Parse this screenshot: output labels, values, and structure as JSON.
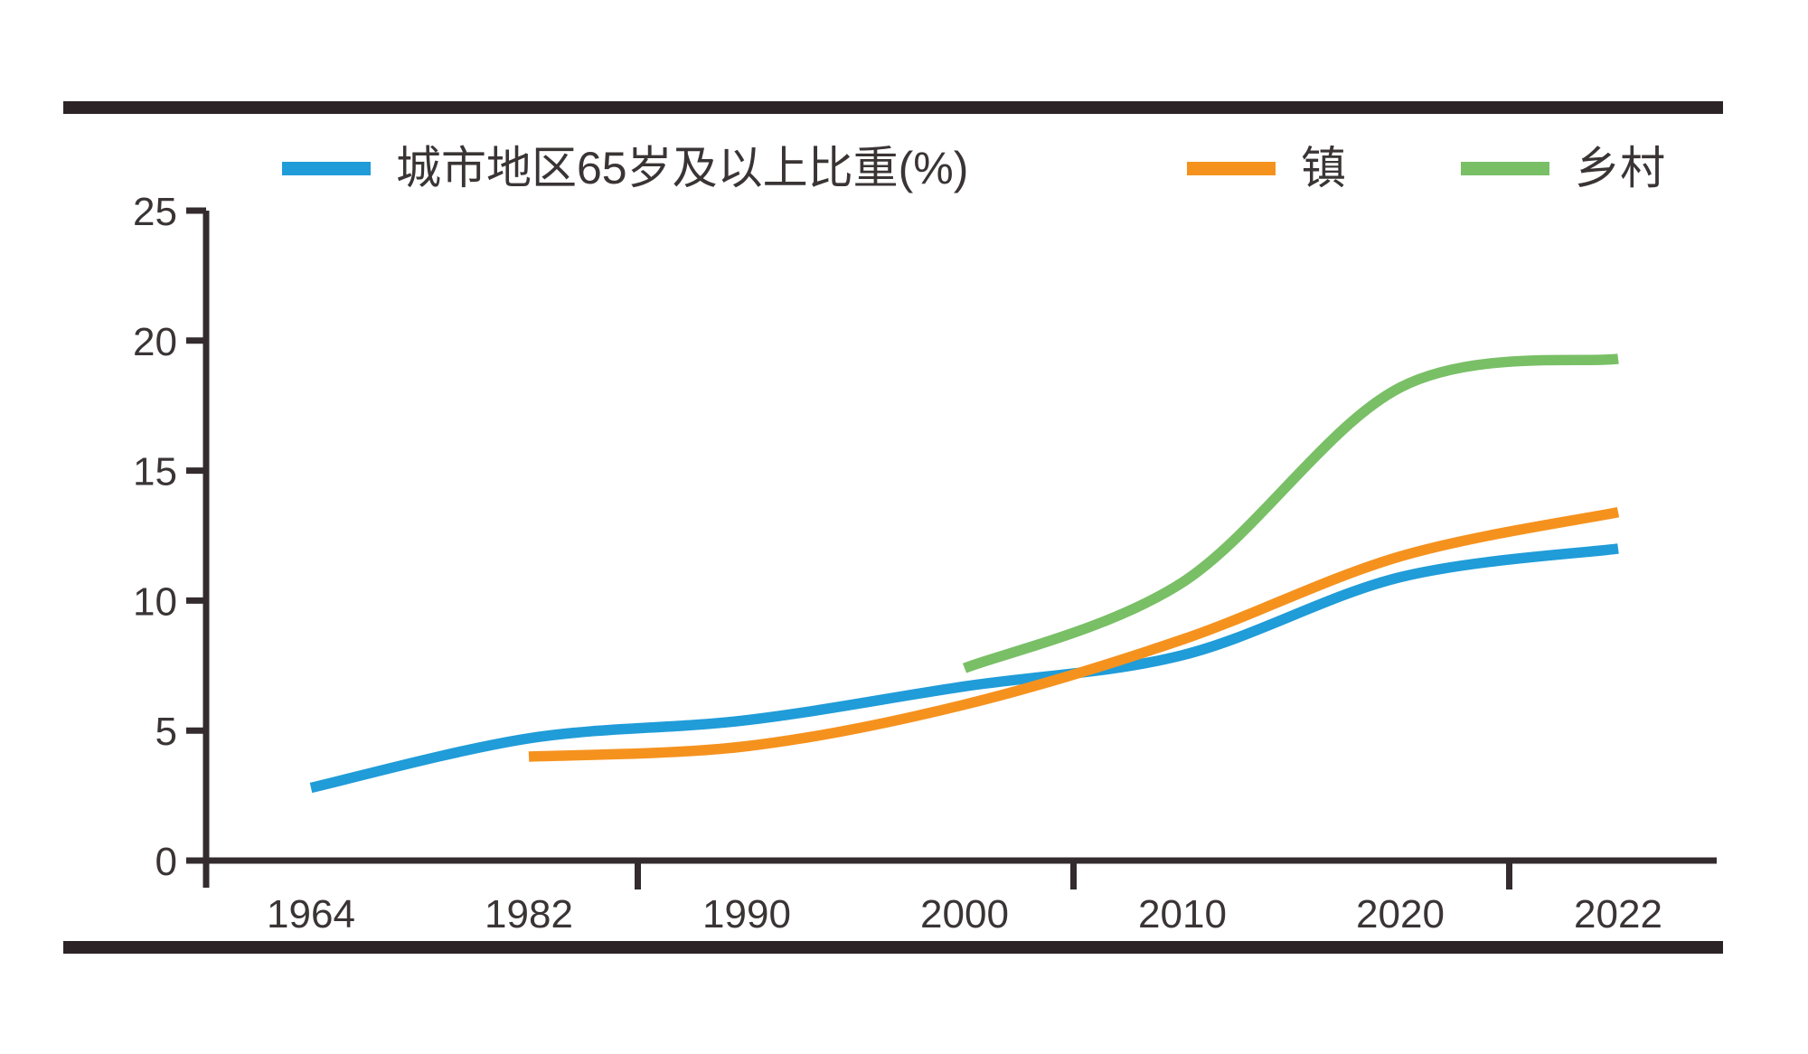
{
  "page": {
    "background": "#FFFFFF"
  },
  "rules": {
    "color": "#2B2326"
  },
  "legend": {
    "position": "top",
    "items": [
      {
        "label": "城市地区65岁及以上比重(%)",
        "color": "#209CD8",
        "swatch": "blue-line-swatch"
      },
      {
        "label": "镇",
        "color": "#F5921E",
        "swatch": "orange-line-swatch"
      },
      {
        "label": "乡村",
        "color": "#79BF66",
        "swatch": "green-line-swatch"
      }
    ]
  },
  "chart_data": {
    "type": "line",
    "title": "",
    "xlabel": "",
    "ylabel": "",
    "categories": [
      "1964",
      "1982",
      "1990",
      "2000",
      "2010",
      "2020",
      "2022"
    ],
    "series": [
      {
        "name": "城市地区65岁及以上比重(%)",
        "color": "#209CD8",
        "values": [
          2.8,
          4.7,
          5.4,
          6.7,
          7.9,
          10.9,
          12.0
        ]
      },
      {
        "name": "镇",
        "color": "#F5921E",
        "values": [
          null,
          4.0,
          4.4,
          6.0,
          8.5,
          11.7,
          13.4
        ]
      },
      {
        "name": "乡村",
        "color": "#79BF66",
        "values": [
          null,
          null,
          null,
          7.4,
          10.7,
          18.2,
          19.3
        ]
      }
    ],
    "ylim": [
      0,
      25
    ],
    "yticks": [
      0,
      5,
      10,
      15,
      20,
      25
    ],
    "grid": false,
    "legend_position": "top",
    "smoothed_lines": true,
    "axis_color": "#332B2D",
    "tick_label_color": "#3A3435"
  }
}
